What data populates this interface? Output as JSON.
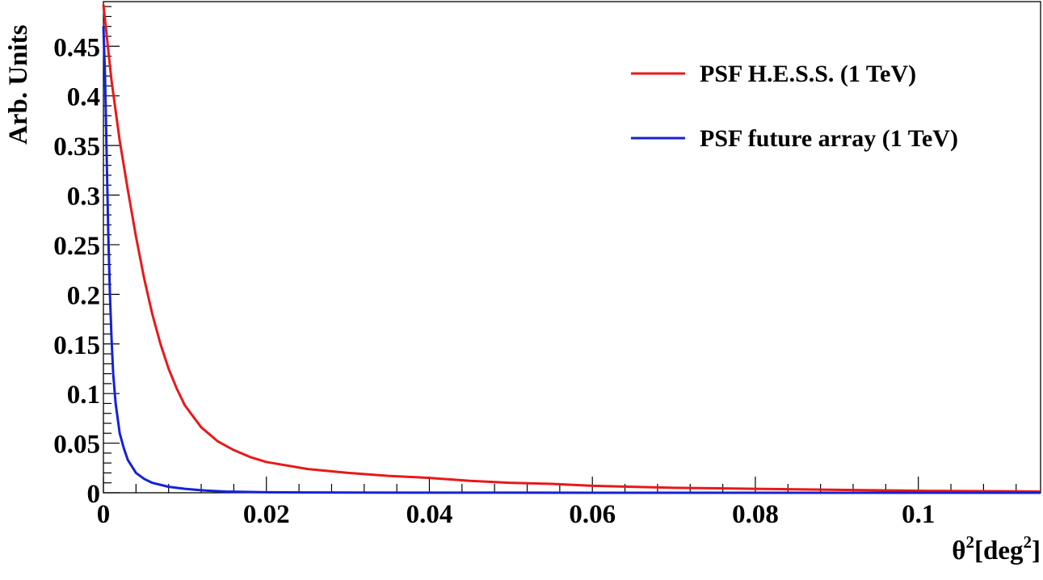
{
  "chart_data": {
    "type": "line",
    "xlabel": "θ2[deg2]",
    "xlabel_parts": {
      "base": "θ",
      "sup1": "2",
      "mid": "[deg",
      "sup2": "2",
      "end": "]"
    },
    "ylabel": "Arb. Units",
    "xlim": [
      0,
      0.115
    ],
    "ylim": [
      0,
      0.495
    ],
    "x_ticks": [
      0,
      0.02,
      0.04,
      0.06,
      0.08,
      0.1
    ],
    "x_tick_labels": [
      "0",
      "0.02",
      "0.04",
      "0.06",
      "0.08",
      "0.1"
    ],
    "y_ticks": [
      0,
      0.05,
      0.1,
      0.15,
      0.2,
      0.25,
      0.3,
      0.35,
      0.4,
      0.45
    ],
    "y_tick_labels": [
      "0",
      "0.05",
      "0.1",
      "0.15",
      "0.2",
      "0.25",
      "0.3",
      "0.35",
      "0.4",
      "0.45"
    ],
    "grid": false,
    "legend_position": "top-right",
    "series": [
      {
        "name": "PSF H.E.S.S. (1 TeV)",
        "color": "#e8191a",
        "x": [
          0,
          0.001,
          0.002,
          0.003,
          0.004,
          0.005,
          0.006,
          0.007,
          0.008,
          0.009,
          0.01,
          0.012,
          0.014,
          0.016,
          0.018,
          0.02,
          0.025,
          0.03,
          0.035,
          0.04,
          0.045,
          0.05,
          0.055,
          0.06,
          0.065,
          0.07,
          0.08,
          0.09,
          0.1,
          0.11,
          0.115
        ],
        "y": [
          0.492,
          0.415,
          0.355,
          0.305,
          0.258,
          0.216,
          0.18,
          0.15,
          0.125,
          0.105,
          0.088,
          0.066,
          0.052,
          0.043,
          0.036,
          0.031,
          0.024,
          0.02,
          0.017,
          0.015,
          0.012,
          0.01,
          0.009,
          0.007,
          0.006,
          0.005,
          0.004,
          0.003,
          0.002,
          0.0015,
          0.0012
        ]
      },
      {
        "name": "PSF future array (1 TeV)",
        "color": "#1522d6",
        "x": [
          0,
          0.0002,
          0.0004,
          0.0006,
          0.0008,
          0.001,
          0.0012,
          0.0015,
          0.002,
          0.0025,
          0.003,
          0.004,
          0.005,
          0.006,
          0.008,
          0.01,
          0.012,
          0.015,
          0.02,
          0.025,
          0.03,
          0.04,
          0.06,
          0.08,
          0.115
        ],
        "y": [
          0.47,
          0.42,
          0.34,
          0.26,
          0.2,
          0.155,
          0.12,
          0.09,
          0.06,
          0.045,
          0.033,
          0.02,
          0.014,
          0.01,
          0.006,
          0.004,
          0.0025,
          0.0012,
          0.0005,
          0.0003,
          0.0002,
          0.0001,
          5e-05,
          2e-05,
          0.0
        ]
      }
    ]
  }
}
